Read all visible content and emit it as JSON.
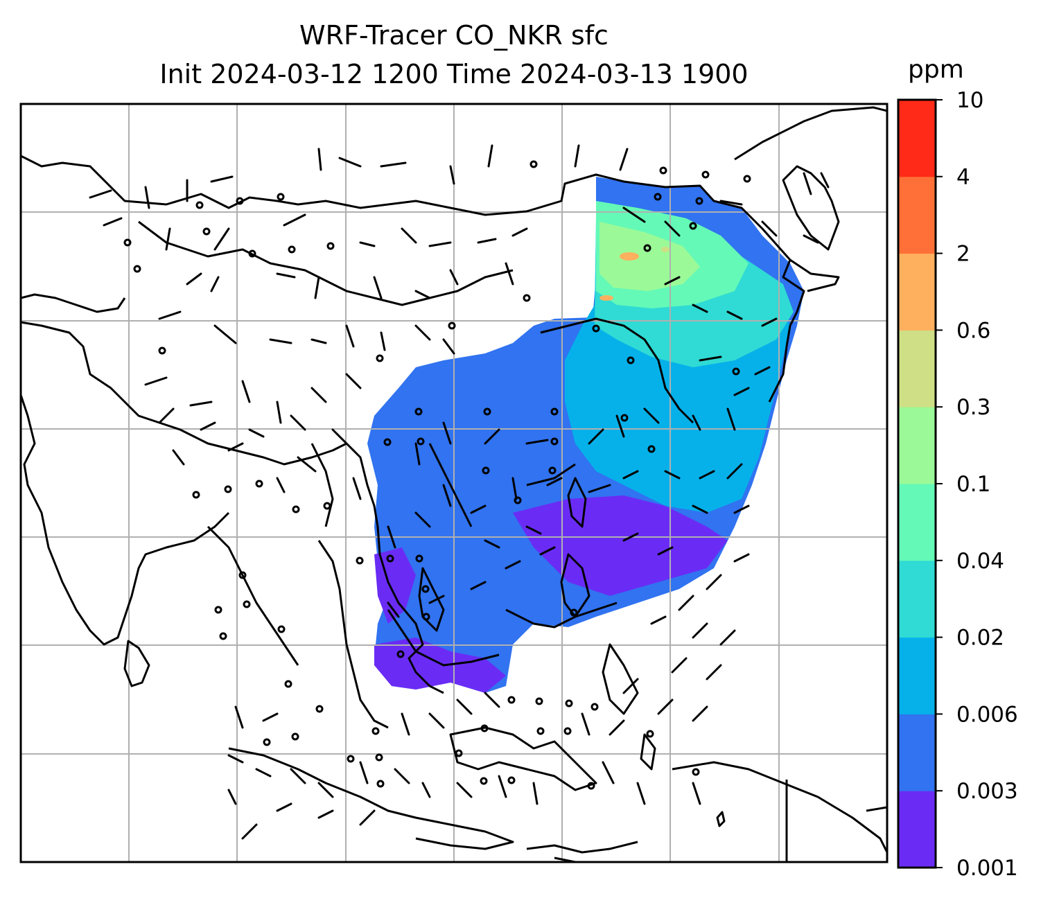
{
  "title": {
    "line1": "WRF-Tracer CO_NKR sfc",
    "line2": "Init 2024-03-12 1200 Time 2024-03-13 1900"
  },
  "colorbar": {
    "unit": "ppm",
    "levels": [
      "0.001",
      "0.003",
      "0.006",
      "0.02",
      "0.04",
      "0.1",
      "0.3",
      "0.6",
      "2",
      "4",
      "10"
    ],
    "colors": [
      "#6a2cf5",
      "#3173f0",
      "#06b1ea",
      "#2fdbd4",
      "#64f9b7",
      "#9bfa97",
      "#cedf85",
      "#feb05f",
      "#ff7038",
      "#ff2a17"
    ]
  },
  "map": {
    "land_outline_color": "#000000",
    "grid_color": "#b0b0b0",
    "plume_colors": {
      "base": "#3173f0",
      "low": "#6a2cf5",
      "mid": "#06b1ea",
      "mid2": "#2fdbd4",
      "high": "#64f9b7",
      "higher": "#9bfa97",
      "peak": "#feb05f"
    }
  }
}
